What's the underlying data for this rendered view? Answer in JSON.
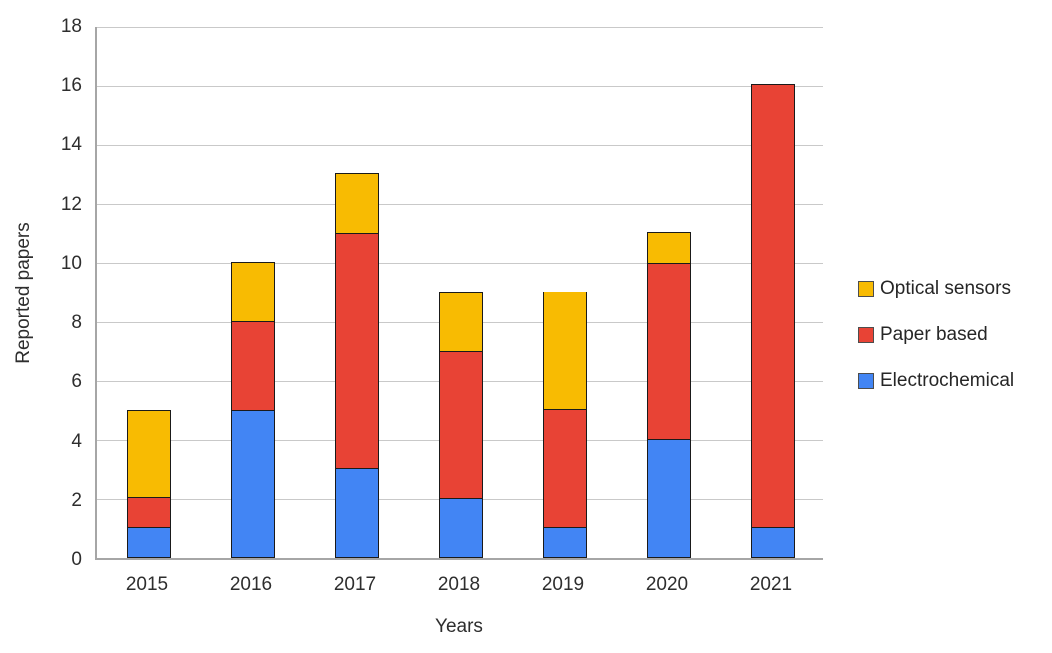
{
  "chart_data": {
    "type": "bar",
    "stacked": true,
    "categories": [
      "2015",
      "2016",
      "2017",
      "2018",
      "2019",
      "2020",
      "2021"
    ],
    "series": [
      {
        "name": "Electrochemical",
        "color": "#4285F4",
        "values": [
          1,
          5,
          3,
          2,
          1,
          4,
          1
        ]
      },
      {
        "name": "Paper based",
        "color": "#E84335",
        "values": [
          1,
          3,
          8,
          5,
          4,
          6,
          15
        ]
      },
      {
        "name": "Optical sensors",
        "color": "#F8BB02",
        "values": [
          3,
          2,
          2,
          2,
          4,
          1,
          0
        ]
      }
    ],
    "totals": [
      5,
      10,
      13,
      9,
      9,
      11,
      16
    ],
    "title": "",
    "xlabel": "Years",
    "ylabel": "Reported papers",
    "ylim": [
      0,
      18
    ],
    "ytick_step": 2,
    "y_ticks": [
      "0",
      "2",
      "4",
      "6",
      "8",
      "10",
      "12",
      "14",
      "16",
      "18"
    ],
    "grid": "horizontal",
    "legend_position": "right",
    "legend_order": [
      "Optical sensors",
      "Paper based",
      "Electrochemical"
    ]
  },
  "style": {
    "gridline_color": "#c9c9c9",
    "axis_color": "#a6a6a6",
    "bar_border_color": "#1a1a1a",
    "text_color": "#2e2e2e"
  }
}
